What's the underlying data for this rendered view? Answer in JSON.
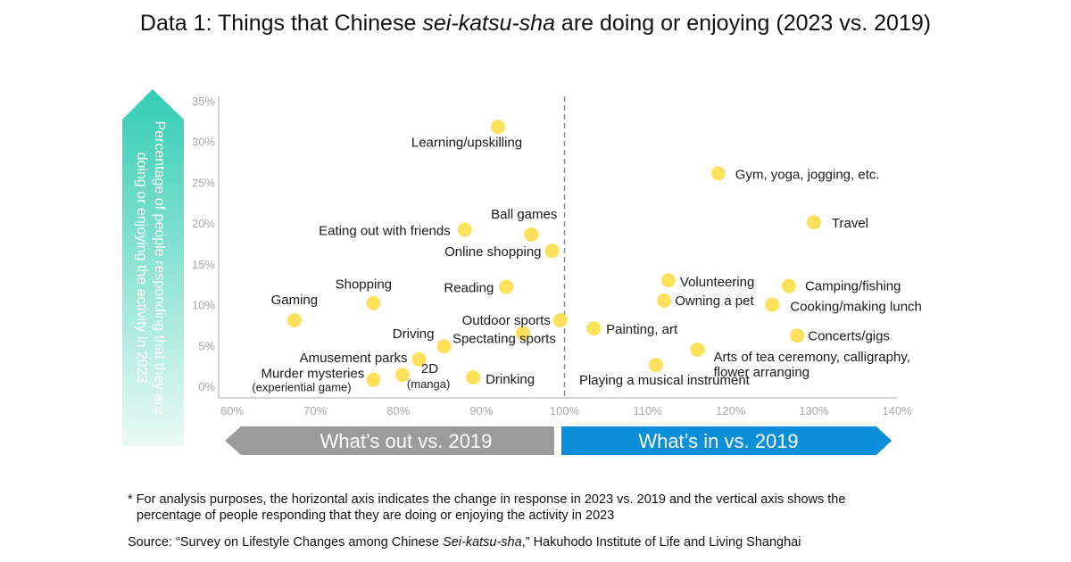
{
  "title": {
    "prefix": "Data 1: Things that Chinese ",
    "italic": "sei-katsu-sha",
    "suffix": " are doing or enjoying (2023 vs. 2019)"
  },
  "y_axis_label": "Percentage of people responding that they are doing or enjoying the activity in 2023",
  "banners": {
    "out": "What’s out vs. 2019",
    "in": "What’s in vs. 2019"
  },
  "colors": {
    "point": "#fde15d",
    "arrow_top": "#33cdb4",
    "arrow_bottom": "#eafaf4",
    "out_band": "#9b9b9b",
    "in_band": "#0a8fd8",
    "axis": "#a9a9a9",
    "divider": "#8a8a8a"
  },
  "footnote": {
    "line1": "* For analysis purposes, the horizontal axis indicates the change in response in 2023 vs. 2019 and the vertical axis shows the",
    "line2": "percentage of people responding that they are doing or enjoying the activity in 2023"
  },
  "source": {
    "prefix": "Source: “Survey on Lifestyle Changes among Chinese ",
    "italic": "Sei-katsu-sha",
    "suffix": ",” Hakuhodo Institute of Life and Living Shanghai"
  },
  "chart_data": {
    "type": "scatter",
    "x_ticks": [
      "60%",
      "70%",
      "80%",
      "90%",
      "100%",
      "110%",
      "120%",
      "130%",
      "140%"
    ],
    "y_ticks": [
      "0%",
      "5%",
      "10%",
      "15%",
      "20%",
      "25%",
      "30%",
      "35%"
    ],
    "xlim": [
      60,
      140
    ],
    "ylim": [
      0,
      35
    ],
    "divider_x": 100,
    "grid": false,
    "points": [
      {
        "label": "Learning/upskilling",
        "x": 92,
        "y": 31.8
      },
      {
        "label": "Eating out with friends",
        "x": 88,
        "y": 19.2
      },
      {
        "label": "Ball games",
        "x": 96,
        "y": 18.6
      },
      {
        "label": "Online shopping",
        "x": 98.5,
        "y": 16.6
      },
      {
        "label": "Reading",
        "x": 93,
        "y": 12.2
      },
      {
        "label": "Shopping",
        "x": 77,
        "y": 10.2
      },
      {
        "label": "Gaming",
        "x": 67.5,
        "y": 8.1
      },
      {
        "label": "Outdoor sports",
        "x": 99.5,
        "y": 8.1
      },
      {
        "label": "Spectating sports",
        "x": 95,
        "y": 6.5
      },
      {
        "label": "Driving",
        "x": 85.5,
        "y": 4.9
      },
      {
        "label": "Amusement parks",
        "x": 82.5,
        "y": 3.3
      },
      {
        "label": "2D",
        "sublabel": "(manga)",
        "x": 80.5,
        "y": 1.4
      },
      {
        "label": "Murder mysteries",
        "sublabel": "(experiential game)",
        "x": 77,
        "y": 0.8
      },
      {
        "label": "Drinking",
        "x": 89,
        "y": 1.1
      },
      {
        "label": "Gym, yoga, jogging, etc.",
        "x": 118.5,
        "y": 26.1
      },
      {
        "label": "Travel",
        "x": 130,
        "y": 20.1
      },
      {
        "label": "Volunteering",
        "x": 112.5,
        "y": 13.0
      },
      {
        "label": "Camping/fishing",
        "x": 127,
        "y": 12.3
      },
      {
        "label": "Owning a pet",
        "x": 112,
        "y": 10.5
      },
      {
        "label": "Cooking/making lunch",
        "x": 125,
        "y": 10.0
      },
      {
        "label": "Painting, art",
        "x": 103.5,
        "y": 7.1
      },
      {
        "label": "Concerts/gigs",
        "x": 128,
        "y": 6.2
      },
      {
        "label": "Arts of tea ceremony, calligraphy,",
        "sublabel": "flower arranging",
        "x": 116,
        "y": 4.5
      },
      {
        "label": "Playing a musical instrument",
        "x": 111,
        "y": 2.6
      }
    ]
  }
}
